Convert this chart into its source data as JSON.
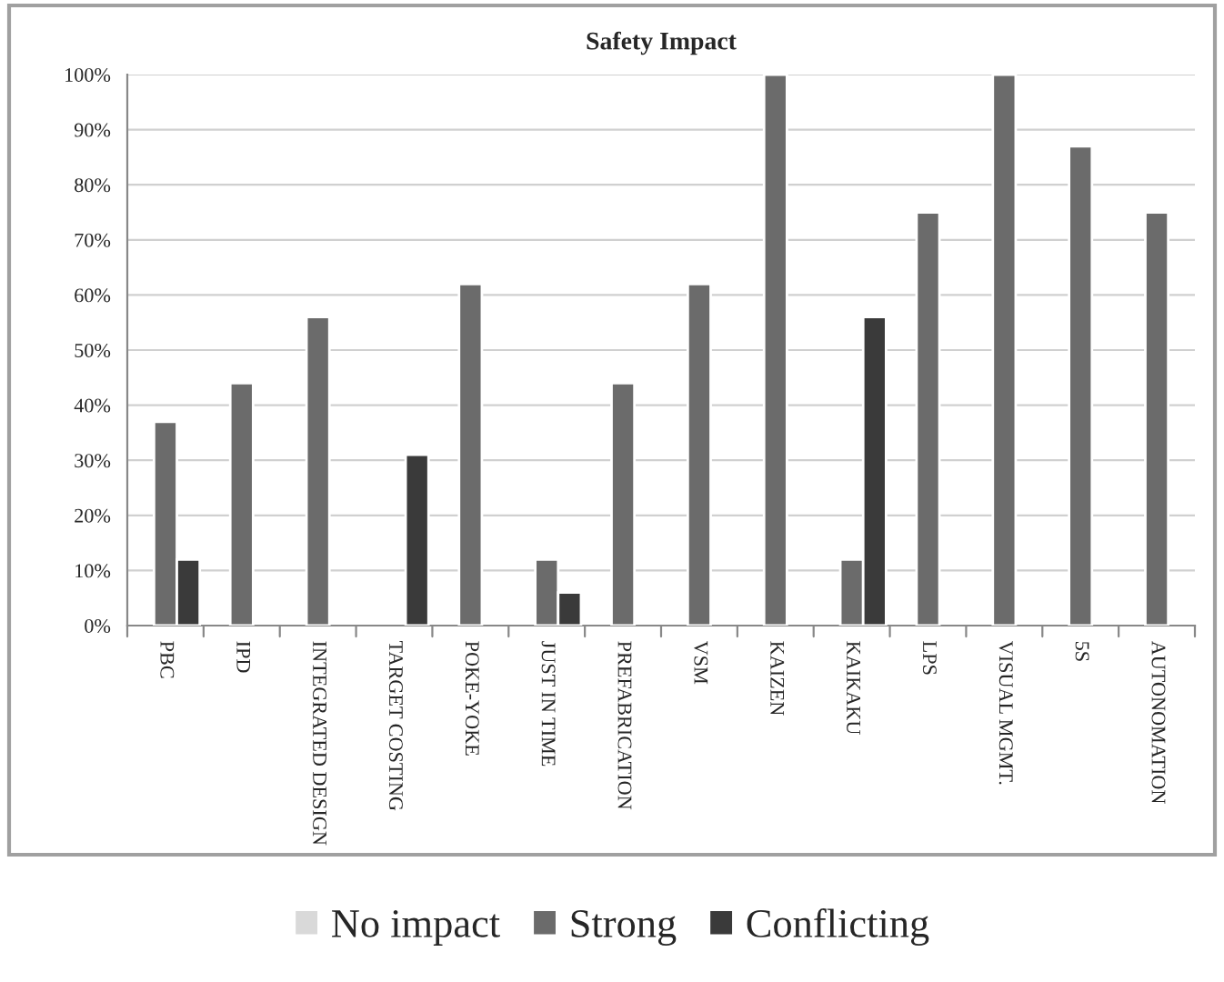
{
  "chart_data": {
    "type": "bar",
    "title": "Safety Impact",
    "categories": [
      "PBC",
      "IPD",
      "INTEGRATED DESIGN",
      "TARGET COSTING",
      "POKE-YOKE",
      "JUST IN TIME",
      "PREFABRICATION",
      "VSM",
      "KAIZEN",
      "KAIKAKU",
      "LPS",
      "VISUAL MGMT.",
      "5S",
      "AUTONOMATION"
    ],
    "series": [
      {
        "name": "No impact",
        "color": "#d9d9d9",
        "values": [
          null,
          null,
          null,
          null,
          null,
          null,
          null,
          null,
          null,
          null,
          null,
          null,
          null,
          null
        ]
      },
      {
        "name": "Strong",
        "color": "#6b6b6b",
        "values": [
          37,
          44,
          56,
          null,
          62,
          12,
          44,
          62,
          100,
          12,
          75,
          100,
          87,
          75
        ]
      },
      {
        "name": "Conflicting",
        "color": "#3a3a3a",
        "values": [
          12,
          null,
          null,
          31,
          null,
          6,
          null,
          null,
          null,
          56,
          null,
          null,
          null,
          null
        ]
      }
    ],
    "ylim": [
      0,
      100
    ],
    "yticks": [
      {
        "value": 0,
        "label": "0%"
      },
      {
        "value": 10,
        "label": "10%"
      },
      {
        "value": 20,
        "label": "20%"
      },
      {
        "value": 30,
        "label": "30%"
      },
      {
        "value": 40,
        "label": "40%"
      },
      {
        "value": 50,
        "label": "50%"
      },
      {
        "value": 60,
        "label": "60%"
      },
      {
        "value": 70,
        "label": "70%"
      },
      {
        "value": 80,
        "label": "80%"
      },
      {
        "value": 90,
        "label": "90%"
      },
      {
        "value": 100,
        "label": "100%"
      }
    ],
    "grid": "y",
    "legend": "bottom"
  }
}
